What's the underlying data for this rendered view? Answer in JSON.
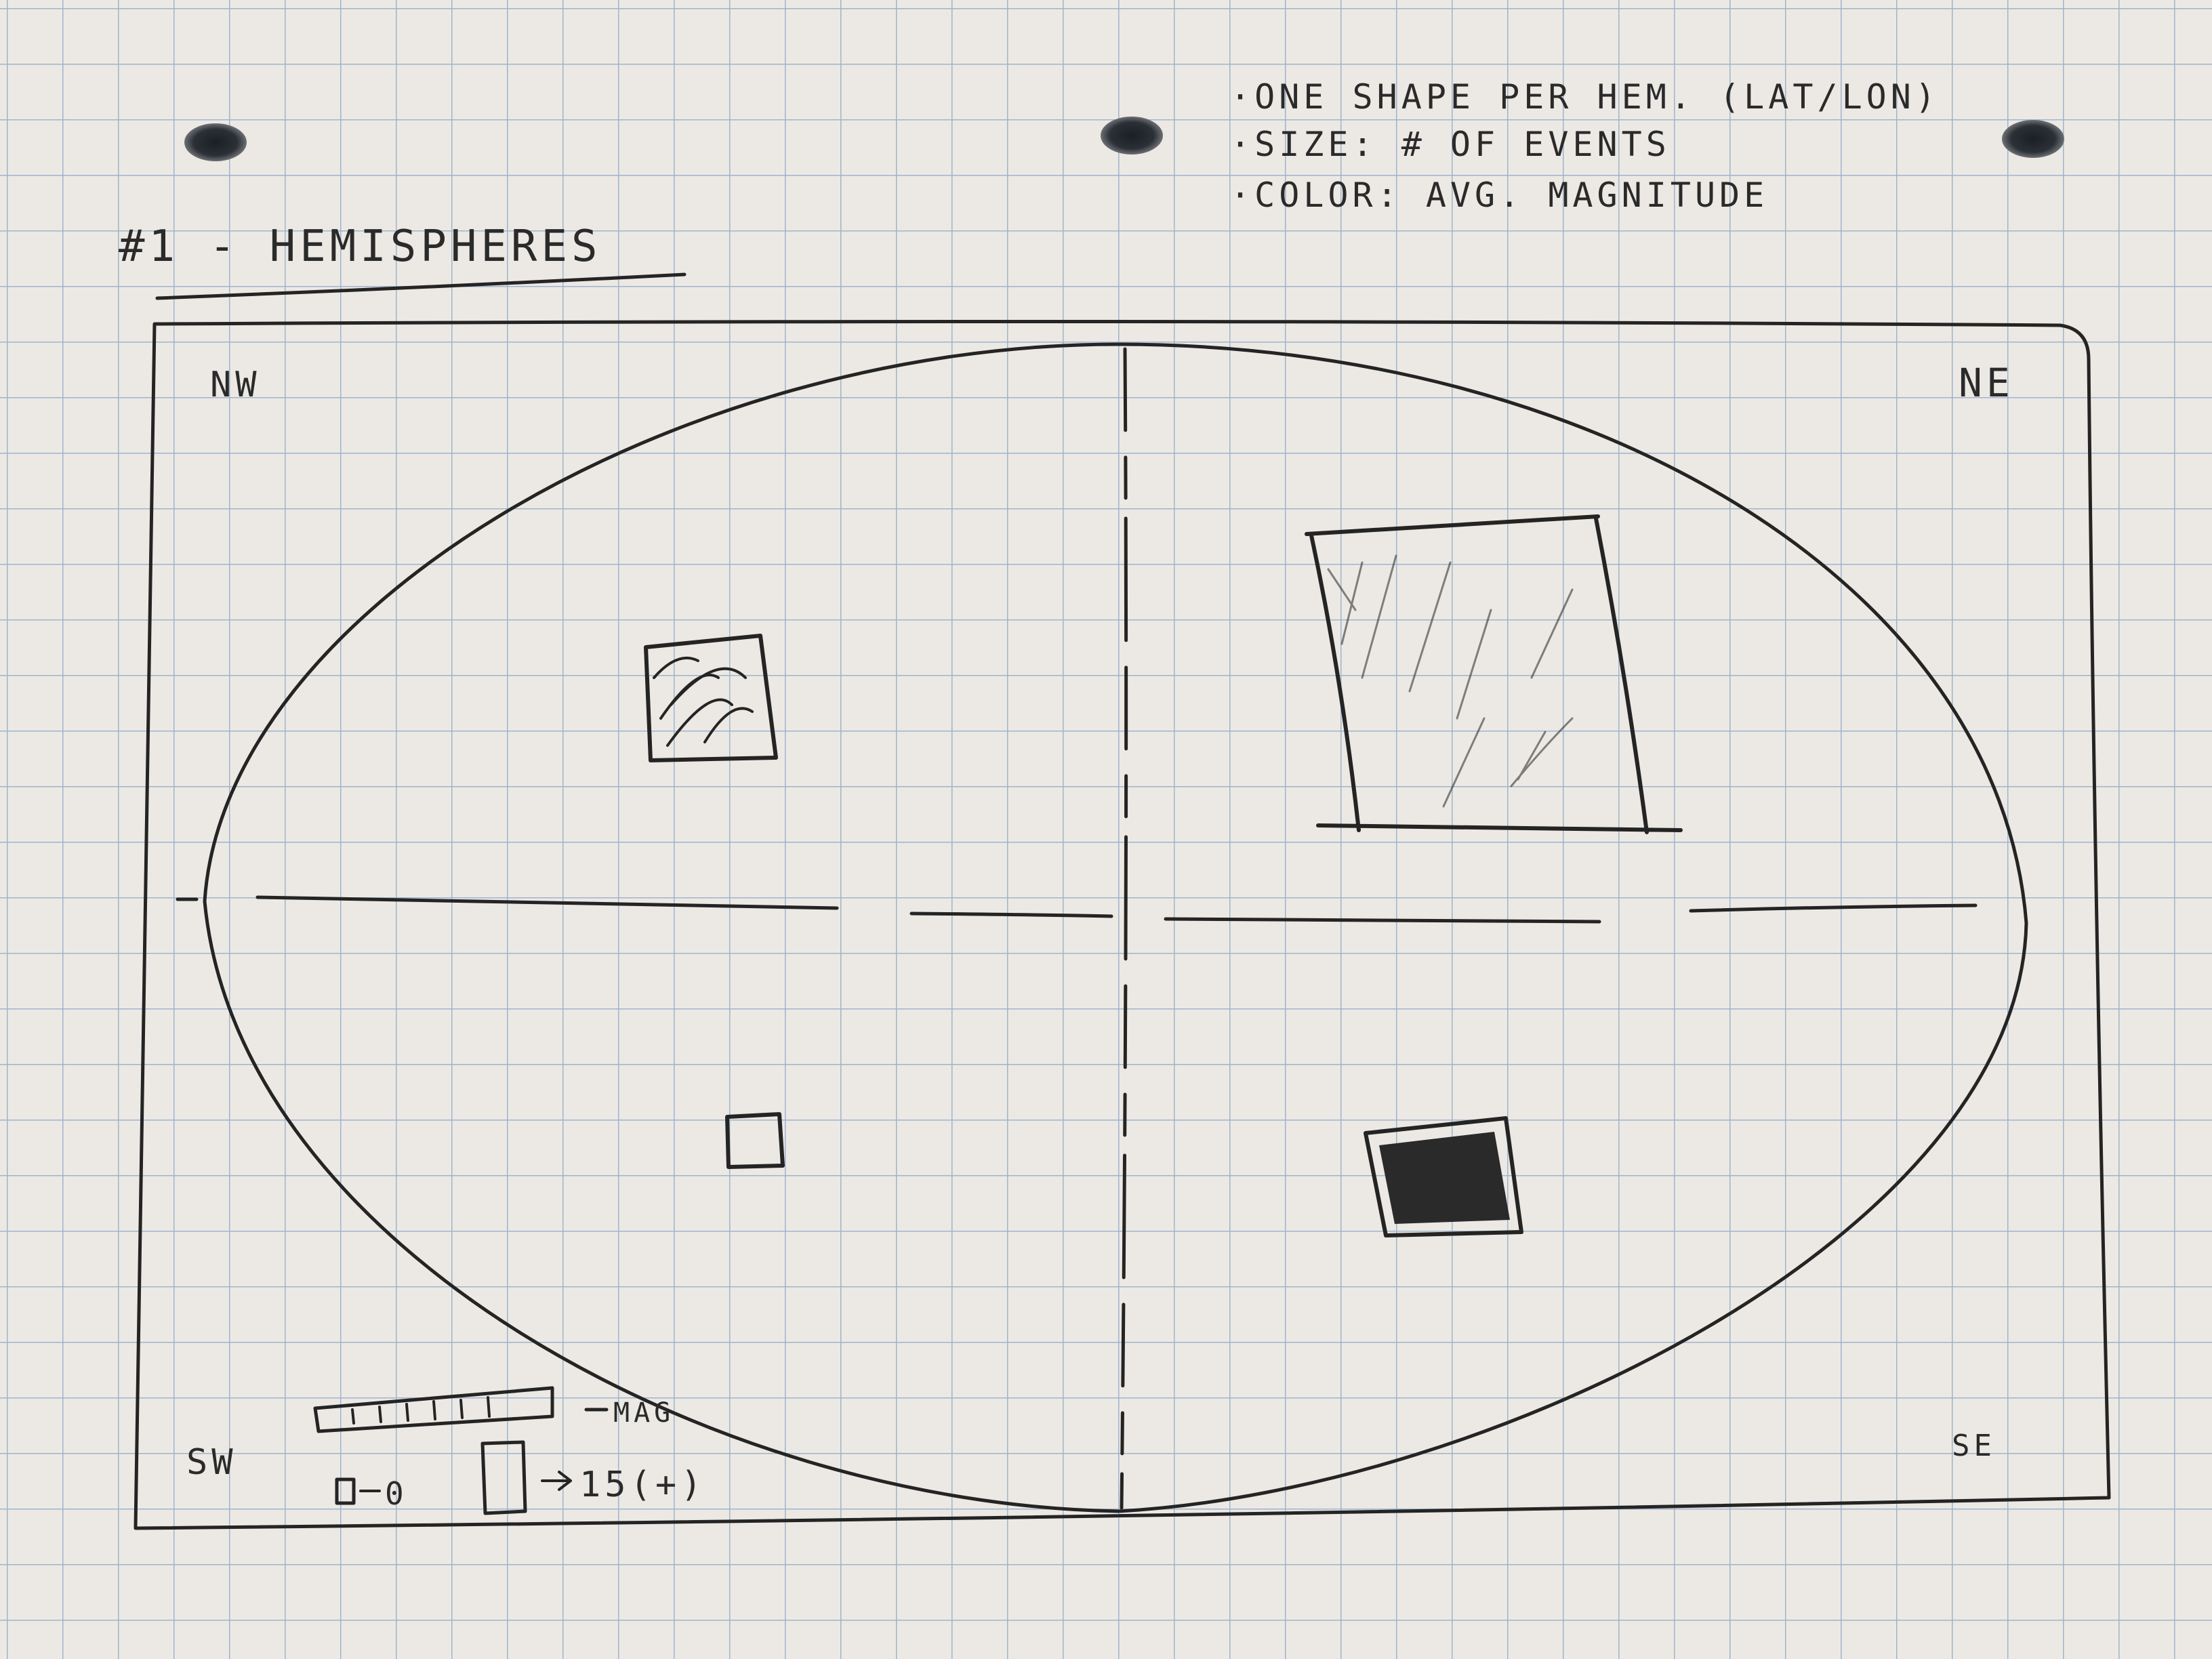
{
  "title": "#1 - HEMISPHERES",
  "notes": [
    "·ONE SHAPE PER HEM. (LAT/LON)",
    "·SIZE: # OF EVENTS",
    "·COLOR: AVG. MAGNITUDE"
  ],
  "quadrants": {
    "nw": "NW",
    "ne": "NE",
    "sw": "SW",
    "se": "SE"
  },
  "legend": {
    "color_label": "MAG",
    "size_small_label": "0",
    "size_large_label": "15(+)"
  },
  "colors": {
    "paper": "#ece9e4",
    "grid": "#9fb4cc",
    "ink": "#242424"
  }
}
